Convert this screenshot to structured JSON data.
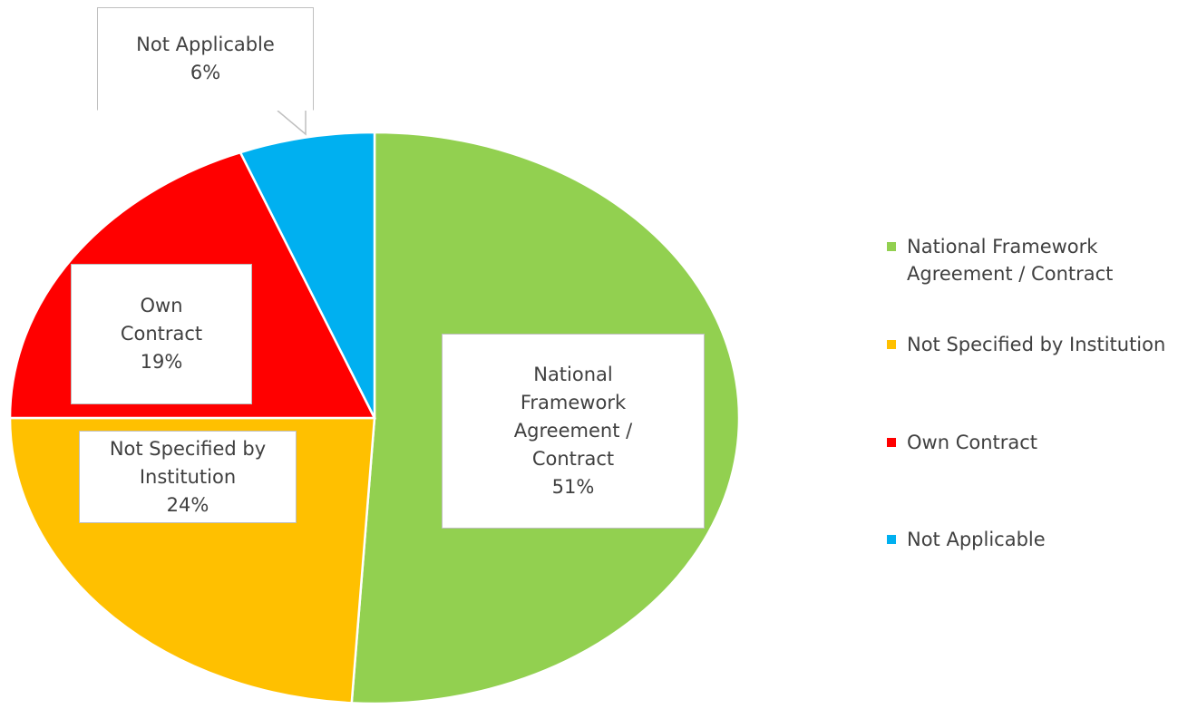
{
  "chart_data": {
    "type": "pie",
    "categories": [
      "National Framework Agreement / Contract",
      "Not Specified by Institution",
      "Own Contract",
      "Not Applicable"
    ],
    "values": [
      51,
      24,
      19,
      6
    ],
    "value_labels": [
      "51%",
      "24%",
      "19%",
      "6%"
    ],
    "colors": [
      "#92d050",
      "#ffc000",
      "#ff0000",
      "#00b0f0"
    ],
    "legend": "right"
  }
}
